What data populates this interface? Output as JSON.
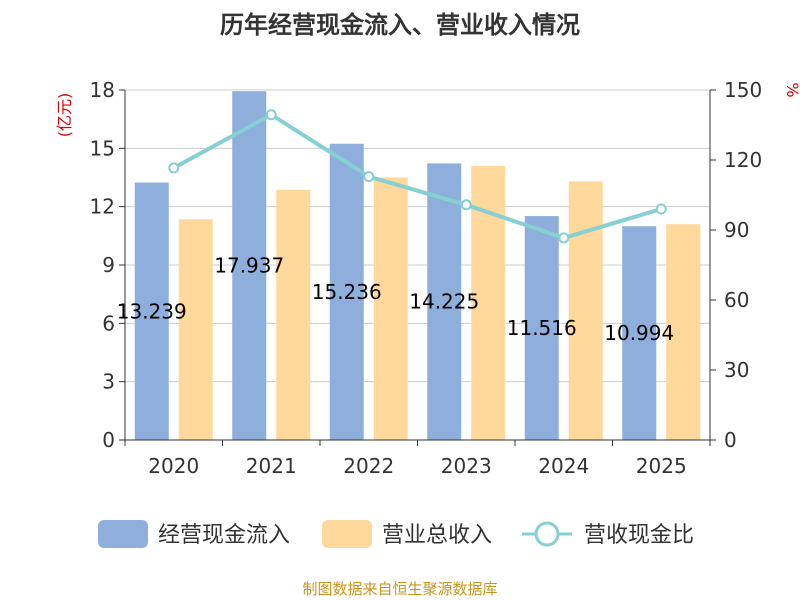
{
  "chart_data": {
    "type": "bar",
    "title": "历年经营现金流入、营业收入情况",
    "categories": [
      "2020",
      "2021",
      "2022",
      "2023",
      "2024",
      "2025"
    ],
    "series": [
      {
        "name": "经营现金流入",
        "type": "bar",
        "axis": "left",
        "color": "#8eaedc",
        "values": [
          13.239,
          17.937,
          15.236,
          14.225,
          11.516,
          10.994
        ],
        "labels": [
          "13.239",
          "17.937",
          "15.236",
          "14.225",
          "11.516",
          "10.994"
        ]
      },
      {
        "name": "营业总收入",
        "type": "bar",
        "axis": "left",
        "color": "#fed99b",
        "values": [
          11.35,
          12.87,
          13.5,
          14.1,
          13.3,
          11.1
        ]
      },
      {
        "name": "营收现金比",
        "type": "line",
        "axis": "right",
        "color": "#86d0d4",
        "values": [
          116.6,
          139.4,
          112.9,
          100.8,
          86.6,
          99.0
        ]
      }
    ],
    "ylabel_left": "(亿元)",
    "ylabel_right": "%",
    "ylim_left": [
      0,
      18
    ],
    "yticks_left": [
      "0",
      "3",
      "6",
      "9",
      "12",
      "15",
      "18"
    ],
    "ylim_right": [
      0,
      150
    ],
    "yticks_right": [
      "0",
      "30",
      "60",
      "90",
      "120",
      "150"
    ],
    "legend_position": "bottom"
  },
  "source": "制图数据来自恒生聚源数据库"
}
